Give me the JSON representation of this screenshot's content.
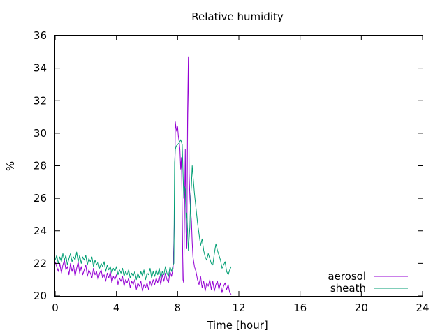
{
  "chart_data": {
    "type": "line",
    "title": "Relative humidity",
    "xlabel": "Time [hour]",
    "ylabel": "%",
    "xlim": [
      0,
      24
    ],
    "ylim": [
      20,
      36
    ],
    "xticks": [
      0,
      4,
      8,
      12,
      16,
      20,
      24
    ],
    "yticks": [
      20,
      22,
      24,
      26,
      28,
      30,
      32,
      34,
      36
    ],
    "grid": false,
    "legend_position": "bottom-right",
    "series": [
      {
        "name": "aerosol",
        "color": "#9400d3",
        "x": [
          0.0,
          0.1,
          0.2,
          0.3,
          0.4,
          0.5,
          0.6,
          0.7,
          0.8,
          0.9,
          1.0,
          1.1,
          1.2,
          1.3,
          1.4,
          1.5,
          1.6,
          1.7,
          1.8,
          1.9,
          2.0,
          2.1,
          2.2,
          2.3,
          2.4,
          2.5,
          2.6,
          2.7,
          2.8,
          2.9,
          3.0,
          3.1,
          3.2,
          3.3,
          3.4,
          3.5,
          3.6,
          3.7,
          3.8,
          3.9,
          4.0,
          4.1,
          4.2,
          4.3,
          4.4,
          4.5,
          4.6,
          4.7,
          4.8,
          4.9,
          5.0,
          5.1,
          5.2,
          5.3,
          5.4,
          5.5,
          5.6,
          5.7,
          5.8,
          5.9,
          6.0,
          6.1,
          6.2,
          6.3,
          6.4,
          6.5,
          6.6,
          6.7,
          6.8,
          6.9,
          7.0,
          7.1,
          7.2,
          7.3,
          7.4,
          7.5,
          7.6,
          7.7,
          7.75,
          7.8,
          7.85,
          7.9,
          7.95,
          8.0,
          8.05,
          8.1,
          8.15,
          8.2,
          8.25,
          8.3,
          8.35,
          8.4,
          8.45,
          8.5,
          8.55,
          8.6,
          8.65,
          8.7,
          8.75,
          8.8,
          8.85,
          8.9,
          8.95,
          9.0,
          9.1,
          9.2,
          9.3,
          9.4,
          9.5,
          9.6,
          9.7,
          9.8,
          9.9,
          10.0,
          10.1,
          10.2,
          10.3,
          10.4,
          10.5,
          10.6,
          10.7,
          10.8,
          10.9,
          11.0,
          11.1,
          11.2,
          11.3,
          11.4,
          11.5
        ],
        "y": [
          22.1,
          21.8,
          21.5,
          22.0,
          21.4,
          21.9,
          22.2,
          21.6,
          21.8,
          21.3,
          22.0,
          21.5,
          21.9,
          21.2,
          21.7,
          22.1,
          21.4,
          21.8,
          21.3,
          21.6,
          21.9,
          21.2,
          21.6,
          21.4,
          21.1,
          21.7,
          21.3,
          21.5,
          21.0,
          21.4,
          21.6,
          21.1,
          21.3,
          20.9,
          21.4,
          21.1,
          21.5,
          20.8,
          21.2,
          21.0,
          21.3,
          20.7,
          21.1,
          20.9,
          21.2,
          20.6,
          21.0,
          20.8,
          21.1,
          20.5,
          20.9,
          20.7,
          21.0,
          20.4,
          20.8,
          20.6,
          20.9,
          20.3,
          20.7,
          20.5,
          20.8,
          20.4,
          20.9,
          20.6,
          21.0,
          20.7,
          21.1,
          20.8,
          21.2,
          20.7,
          21.3,
          20.9,
          21.4,
          21.0,
          20.8,
          21.5,
          21.2,
          21.7,
          23.2,
          25.3,
          30.7,
          30.3,
          30.1,
          30.4,
          29.8,
          29.5,
          29.0,
          27.8,
          28.5,
          25.1,
          21.0,
          20.8,
          25.2,
          29.0,
          23.9,
          22.9,
          31.2,
          34.7,
          27.5,
          26.0,
          25.2,
          24.6,
          23.3,
          22.4,
          21.8,
          21.5,
          21.0,
          20.7,
          21.2,
          20.5,
          20.9,
          20.3,
          20.8,
          20.6,
          21.0,
          20.4,
          20.9,
          20.3,
          20.7,
          20.9,
          20.4,
          20.8,
          20.2,
          20.6,
          20.8,
          20.4,
          20.7,
          20.2,
          20.1
        ]
      },
      {
        "name": "sheath",
        "color": "#009e73",
        "x": [
          0.0,
          0.1,
          0.2,
          0.3,
          0.4,
          0.5,
          0.6,
          0.7,
          0.8,
          0.9,
          1.0,
          1.1,
          1.2,
          1.3,
          1.4,
          1.5,
          1.6,
          1.7,
          1.8,
          1.9,
          2.0,
          2.1,
          2.2,
          2.3,
          2.4,
          2.5,
          2.6,
          2.7,
          2.8,
          2.9,
          3.0,
          3.1,
          3.2,
          3.3,
          3.4,
          3.5,
          3.6,
          3.7,
          3.8,
          3.9,
          4.0,
          4.1,
          4.2,
          4.3,
          4.4,
          4.5,
          4.6,
          4.7,
          4.8,
          4.9,
          5.0,
          5.1,
          5.2,
          5.3,
          5.4,
          5.5,
          5.6,
          5.7,
          5.8,
          5.9,
          6.0,
          6.1,
          6.2,
          6.3,
          6.4,
          6.5,
          6.6,
          6.7,
          6.8,
          6.9,
          7.0,
          7.1,
          7.2,
          7.3,
          7.4,
          7.5,
          7.6,
          7.7,
          7.75,
          7.8,
          7.85,
          7.9,
          8.0,
          8.1,
          8.2,
          8.3,
          8.4,
          8.45,
          8.5,
          8.55,
          8.6,
          8.7,
          8.8,
          8.85,
          8.9,
          8.95,
          9.0,
          9.1,
          9.2,
          9.3,
          9.4,
          9.5,
          9.6,
          9.7,
          9.8,
          9.9,
          10.0,
          10.1,
          10.2,
          10.3,
          10.4,
          10.5,
          10.6,
          10.7,
          10.8,
          10.9,
          11.0,
          11.1,
          11.2,
          11.3,
          11.4,
          11.5
        ],
        "y": [
          22.2,
          22.5,
          22.0,
          22.4,
          22.1,
          22.6,
          22.2,
          22.5,
          21.9,
          22.3,
          22.6,
          22.1,
          22.4,
          22.2,
          22.7,
          22.1,
          22.5,
          22.0,
          22.4,
          22.2,
          22.5,
          21.9,
          22.3,
          22.1,
          22.4,
          21.8,
          22.2,
          21.9,
          22.1,
          21.7,
          22.0,
          21.8,
          22.1,
          21.5,
          21.9,
          21.6,
          21.8,
          21.4,
          21.7,
          21.5,
          21.8,
          21.3,
          21.6,
          21.4,
          21.7,
          21.2,
          21.5,
          21.3,
          21.6,
          21.1,
          21.4,
          21.2,
          21.5,
          21.0,
          21.4,
          21.1,
          21.5,
          21.2,
          21.6,
          21.0,
          21.4,
          21.3,
          21.7,
          21.1,
          21.5,
          21.2,
          21.6,
          21.3,
          21.7,
          21.1,
          21.5,
          21.3,
          21.8,
          21.4,
          21.2,
          21.8,
          21.5,
          21.9,
          22.0,
          28.2,
          29.0,
          29.2,
          29.3,
          29.4,
          29.6,
          29.3,
          26.0,
          26.7,
          26.5,
          24.7,
          25.1,
          22.8,
          24.3,
          26.1,
          26.8,
          28.0,
          27.4,
          26.3,
          25.4,
          24.5,
          23.8,
          23.1,
          23.5,
          22.8,
          22.4,
          22.2,
          22.6,
          22.3,
          22.0,
          21.9,
          22.6,
          23.2,
          22.8,
          22.5,
          22.2,
          21.7,
          21.9,
          22.1,
          21.5,
          21.3,
          21.6,
          21.8
        ]
      }
    ]
  }
}
